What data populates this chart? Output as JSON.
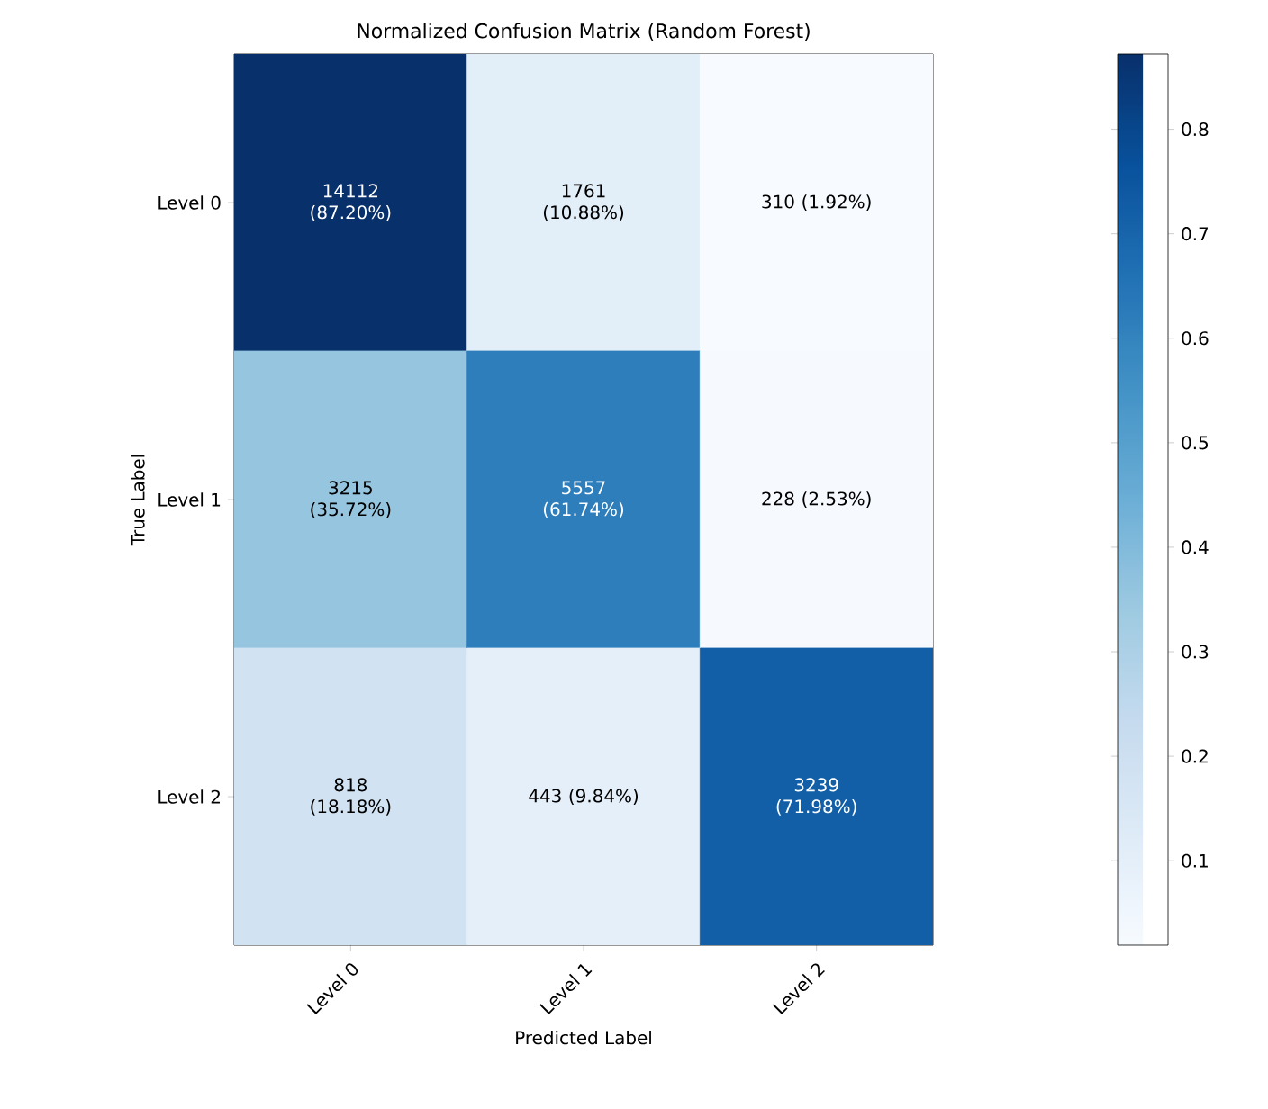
{
  "chart_data": {
    "type": "heatmap",
    "title": "Normalized Confusion Matrix (Random Forest)",
    "xlabel": "Predicted Label",
    "ylabel": "True Label",
    "categories": [
      "Level 0",
      "Level 1",
      "Level 2"
    ],
    "y_categories": [
      "Level 0",
      "Level 1",
      "Level 2"
    ],
    "cells": [
      [
        0.872,
        0.1088,
        0.0192
      ],
      [
        0.3572,
        0.6174,
        0.0253
      ],
      [
        0.1818,
        0.0984,
        0.7198
      ]
    ],
    "cell_labels": [
      [
        "14112 (87.20%)",
        "1761 (10.88%)",
        "310 (1.92%)"
      ],
      [
        "3215 (35.72%)",
        "5557 (61.74%)",
        "228 (2.53%)"
      ],
      [
        "818 (18.18%)",
        "443 (9.84%)",
        "3239 (71.98%)"
      ]
    ],
    "clim": [
      0.0192,
      0.872
    ],
    "cticks": [
      0.1,
      0.2,
      0.3,
      0.4,
      0.5,
      0.6,
      0.7,
      0.8
    ]
  }
}
